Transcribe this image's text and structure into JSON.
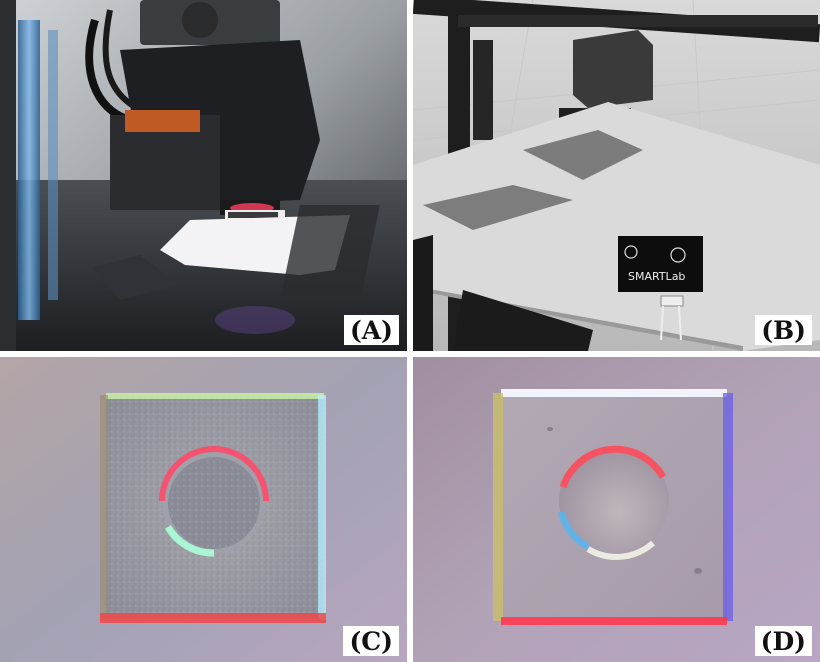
{
  "panels": [
    {
      "id": "A",
      "label": "(A)"
    },
    {
      "id": "B",
      "label": "(B)"
    },
    {
      "id": "C",
      "label": "(C)"
    },
    {
      "id": "D",
      "label": "(D)"
    }
  ],
  "sign_text": "SMARTLab"
}
